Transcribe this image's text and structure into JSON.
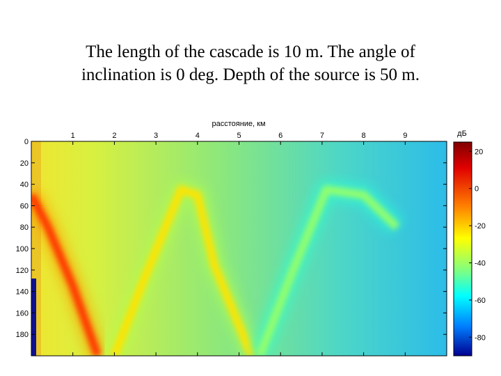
{
  "slide": {
    "title_line1": "The length of the cascade is 10 m. The angle of",
    "title_line2": "inclination is 0 deg. Depth of the source is 50 m."
  },
  "chart_data": {
    "type": "heatmap",
    "xlabel": "расстояние, км",
    "ylabel": "",
    "colorbar_label": "дБ",
    "x_ticks": [
      1,
      2,
      3,
      4,
      5,
      6,
      7,
      8,
      9
    ],
    "y_ticks": [
      0,
      20,
      40,
      60,
      80,
      100,
      120,
      140,
      160,
      180
    ],
    "xlim": [
      0,
      10
    ],
    "ylim": [
      200,
      0
    ],
    "colorbar_ticks": [
      20,
      0,
      -20,
      -40,
      -60,
      -80
    ],
    "colorbar_range": [
      -90,
      25
    ],
    "colormap": "jet",
    "background_level_db": -40,
    "rays": [
      {
        "points": [
          [
            0.0,
            50
          ],
          [
            0.4,
            80
          ],
          [
            1.0,
            135
          ],
          [
            1.6,
            200
          ]
        ],
        "level_db": 5
      },
      {
        "points": [
          [
            2.0,
            200
          ],
          [
            2.7,
            130
          ],
          [
            3.6,
            45
          ],
          [
            4.0,
            50
          ],
          [
            4.4,
            115
          ],
          [
            5.3,
            200
          ]
        ],
        "level_db": -15
      },
      {
        "points": [
          [
            5.5,
            200
          ],
          [
            6.3,
            120
          ],
          [
            7.1,
            45
          ],
          [
            8.0,
            50
          ],
          [
            8.8,
            80
          ]
        ],
        "level_db": -30
      }
    ]
  }
}
